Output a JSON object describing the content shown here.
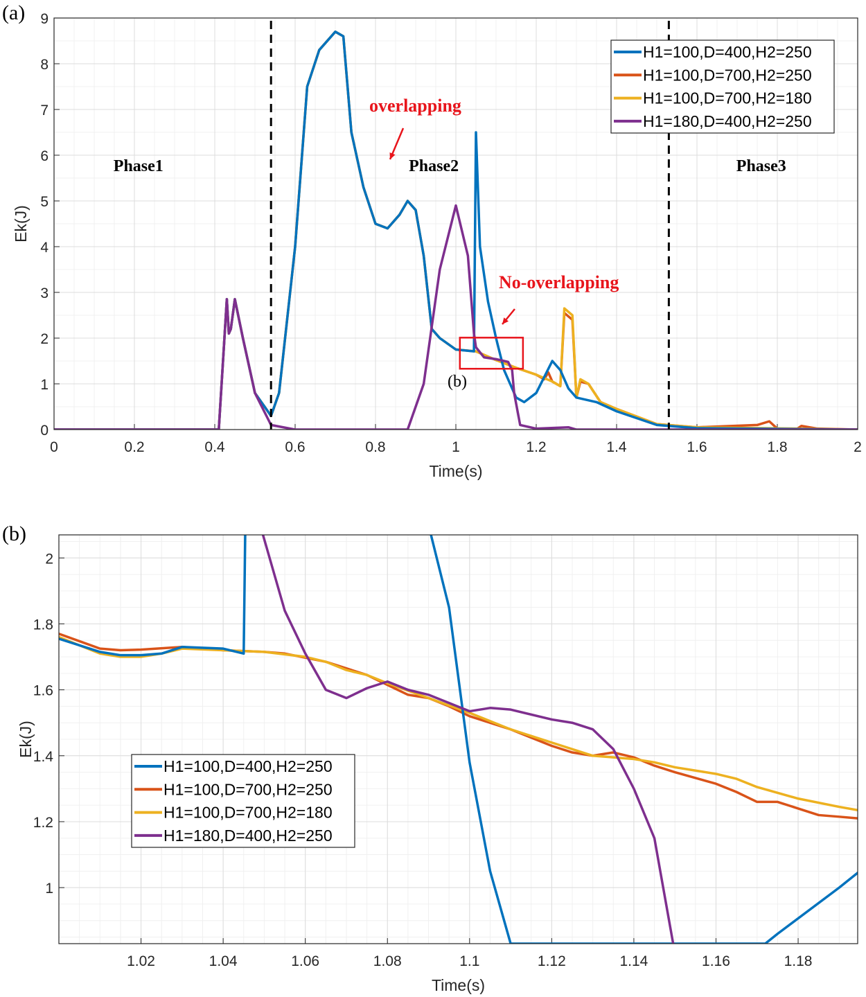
{
  "colors": {
    "s1": "#0072BD",
    "s2": "#D95319",
    "s3": "#EDB120",
    "s4": "#7E2F8E",
    "annot": "#e8141b"
  },
  "chart_data": [
    {
      "type": "line",
      "panel_label": "(a)",
      "xlabel": "Time(s)",
      "ylabel": "Ek(J)",
      "xlim": [
        0,
        2
      ],
      "ylim": [
        0,
        9
      ],
      "xticks": [
        0,
        0.2,
        0.4,
        0.6,
        0.8,
        1,
        1.2,
        1.4,
        1.6,
        1.8,
        2
      ],
      "xtick_labels": [
        "0",
        "0.2",
        "0.4",
        "0.6",
        "0.8",
        "1",
        "1.2",
        "1.4",
        "1.6",
        "1.8",
        "2"
      ],
      "yticks": [
        0,
        1,
        2,
        3,
        4,
        5,
        6,
        7,
        8,
        9
      ],
      "ytick_labels": [
        "0",
        "1",
        "2",
        "3",
        "4",
        "5",
        "6",
        "7",
        "8",
        "9"
      ],
      "grid": true,
      "legend": "top-right",
      "annotations": {
        "phase1": "Phase1",
        "phase2": "Phase2",
        "phase3": "Phase3",
        "overlapping": "overlapping",
        "no_overlapping": "No-overlapping",
        "zoom_label": "(b)",
        "phase_boundaries": [
          0.54,
          1.53
        ],
        "zoom_box": {
          "x": [
            1.01,
            1.167
          ],
          "y": [
            1.33,
            2.01
          ]
        }
      },
      "series": [
        {
          "name": "H1=100,D=400,H2=250",
          "color": "#0072BD",
          "x": [
            0,
            0.41,
            0.43,
            0.435,
            0.44,
            0.45,
            0.47,
            0.5,
            0.54,
            0.56,
            0.6,
            0.63,
            0.66,
            0.7,
            0.72,
            0.74,
            0.77,
            0.8,
            0.83,
            0.86,
            0.88,
            0.9,
            0.92,
            0.94,
            0.96,
            1.0,
            1.045,
            1.05,
            1.06,
            1.08,
            1.1,
            1.12,
            1.15,
            1.17,
            1.2,
            1.24,
            1.26,
            1.28,
            1.3,
            1.35,
            1.4,
            1.5,
            1.6,
            2
          ],
          "y": [
            0,
            0,
            2.85,
            2.1,
            2.2,
            2.85,
            2,
            0.8,
            0.3,
            0.8,
            4,
            7.5,
            8.3,
            8.7,
            8.6,
            6.5,
            5.3,
            4.5,
            4.4,
            4.7,
            5,
            4.8,
            3.8,
            2.2,
            2,
            1.75,
            1.71,
            6.5,
            4,
            2.8,
            2.0,
            1.3,
            0.7,
            0.6,
            0.8,
            1.5,
            1.3,
            0.9,
            0.7,
            0.6,
            0.4,
            0.1,
            0.03,
            0
          ]
        },
        {
          "name": "H1=100,D=700,H2=250",
          "color": "#D95319",
          "x": [
            0,
            0.41,
            0.43,
            0.435,
            0.44,
            0.45,
            0.47,
            0.5,
            0.54,
            0.56,
            0.6,
            0.63,
            0.66,
            0.7,
            0.72,
            0.74,
            0.77,
            0.8,
            0.83,
            0.86,
            0.88,
            0.9,
            0.92,
            0.94,
            0.96,
            1.0,
            1.05,
            1.1,
            1.15,
            1.2,
            1.22,
            1.23,
            1.24,
            1.26,
            1.27,
            1.29,
            1.3,
            1.31,
            1.33,
            1.36,
            1.4,
            1.5,
            1.6,
            1.75,
            1.78,
            1.8,
            1.85,
            1.86,
            1.9,
            2
          ],
          "y": [
            0,
            0,
            2.85,
            2.1,
            2.2,
            2.85,
            2,
            0.8,
            0.3,
            0.8,
            4,
            7.5,
            8.3,
            8.7,
            8.6,
            6.5,
            5.3,
            4.5,
            4.4,
            4.7,
            5,
            4.8,
            3.8,
            2.2,
            2,
            1.75,
            1.71,
            1.52,
            1.35,
            1.2,
            1.1,
            1.25,
            1.05,
            0.95,
            2.55,
            2.4,
            0.7,
            1.05,
            1.0,
            0.6,
            0.45,
            0.12,
            0.05,
            0.1,
            0.18,
            0.02,
            0.02,
            0.08,
            0.02,
            0
          ]
        },
        {
          "name": "H1=100,D=700,H2=180",
          "color": "#EDB120",
          "x": [
            0,
            0.41,
            0.43,
            0.435,
            0.44,
            0.45,
            0.47,
            0.5,
            0.54,
            0.56,
            0.6,
            0.63,
            0.66,
            0.7,
            0.72,
            0.74,
            0.77,
            0.8,
            0.83,
            0.86,
            0.88,
            0.9,
            0.92,
            0.94,
            0.96,
            1.0,
            1.05,
            1.1,
            1.15,
            1.2,
            1.24,
            1.26,
            1.27,
            1.29,
            1.3,
            1.31,
            1.33,
            1.36,
            1.4,
            1.5,
            1.6,
            2
          ],
          "y": [
            0,
            0,
            2.85,
            2.1,
            2.2,
            2.85,
            2,
            0.8,
            0.3,
            0.8,
            4,
            7.5,
            8.3,
            8.7,
            8.6,
            6.5,
            5.3,
            4.5,
            4.4,
            4.7,
            5,
            4.8,
            3.8,
            2.2,
            2,
            1.75,
            1.71,
            1.52,
            1.35,
            1.2,
            1.05,
            0.95,
            2.65,
            2.5,
            0.7,
            1.1,
            1.0,
            0.6,
            0.45,
            0.12,
            0.05,
            0
          ]
        },
        {
          "name": "H1=180,D=400,H2=250",
          "color": "#7E2F8E",
          "x": [
            0,
            0.41,
            0.43,
            0.435,
            0.44,
            0.45,
            0.47,
            0.5,
            0.54,
            0.6,
            0.88,
            0.92,
            0.96,
            1.0,
            1.03,
            1.045,
            1.05,
            1.07,
            1.1,
            1.13,
            1.14,
            1.145,
            1.16,
            1.2,
            1.28,
            1.3,
            2
          ],
          "y": [
            0,
            0,
            2.85,
            2.1,
            2.2,
            2.85,
            2,
            0.8,
            0.1,
            0,
            0,
            1,
            3.5,
            4.9,
            3.8,
            2.1,
            1.8,
            1.58,
            1.54,
            1.48,
            1.3,
            0.8,
            0.1,
            0.02,
            0.05,
            0,
            0
          ]
        }
      ]
    },
    {
      "type": "line",
      "panel_label": "(b)",
      "xlabel": "Time(s)",
      "ylabel": "Ek(J)",
      "xlim": [
        1.0,
        1.1945
      ],
      "ylim": [
        0.83,
        2.07
      ],
      "xticks": [
        1.02,
        1.04,
        1.06,
        1.08,
        1.1,
        1.12,
        1.14,
        1.16,
        1.18
      ],
      "xtick_labels": [
        "1.02",
        "1.04",
        "1.06",
        "1.08",
        "1.1",
        "1.12",
        "1.14",
        "1.16",
        "1.18"
      ],
      "yticks": [
        1,
        1.2,
        1.4,
        1.6,
        1.8,
        2
      ],
      "ytick_labels": [
        "1",
        "1.2",
        "1.4",
        "1.6",
        "1.8",
        "2"
      ],
      "grid": true,
      "legend": "center-left",
      "series": [
        {
          "name": "H1=100,D=400,H2=250",
          "color": "#0072BD",
          "x": [
            1.0,
            1.01,
            1.015,
            1.02,
            1.025,
            1.03,
            1.04,
            1.045,
            1.0455,
            1.09,
            1.095,
            1.1,
            1.105,
            1.11,
            1.172,
            1.175,
            1.19,
            1.195
          ],
          "y": [
            1.755,
            1.715,
            1.705,
            1.705,
            1.71,
            1.73,
            1.725,
            1.71,
            2.2,
            2.1,
            1.85,
            1.38,
            1.05,
            0.83,
            0.83,
            0.86,
            1.0,
            1.05
          ]
        },
        {
          "name": "H1=100,D=700,H2=250",
          "color": "#D95319",
          "x": [
            1.0,
            1.01,
            1.015,
            1.02,
            1.03,
            1.04,
            1.05,
            1.055,
            1.065,
            1.07,
            1.075,
            1.08,
            1.085,
            1.09,
            1.095,
            1.1,
            1.11,
            1.12,
            1.125,
            1.13,
            1.135,
            1.14,
            1.145,
            1.15,
            1.16,
            1.165,
            1.17,
            1.175,
            1.18,
            1.185,
            1.19,
            1.1945
          ],
          "y": [
            1.77,
            1.725,
            1.72,
            1.722,
            1.73,
            1.72,
            1.715,
            1.71,
            1.685,
            1.665,
            1.645,
            1.615,
            1.585,
            1.575,
            1.55,
            1.52,
            1.48,
            1.43,
            1.41,
            1.4,
            1.41,
            1.395,
            1.37,
            1.35,
            1.315,
            1.29,
            1.26,
            1.26,
            1.24,
            1.22,
            1.215,
            1.21
          ]
        },
        {
          "name": "H1=100,D=700,H2=180",
          "color": "#EDB120",
          "x": [
            1.0,
            1.01,
            1.015,
            1.02,
            1.025,
            1.03,
            1.04,
            1.05,
            1.06,
            1.065,
            1.07,
            1.075,
            1.08,
            1.09,
            1.1,
            1.11,
            1.12,
            1.13,
            1.14,
            1.145,
            1.15,
            1.16,
            1.165,
            1.17,
            1.18,
            1.19,
            1.1945
          ],
          "y": [
            1.76,
            1.71,
            1.7,
            1.7,
            1.71,
            1.725,
            1.72,
            1.715,
            1.7,
            1.685,
            1.66,
            1.645,
            1.62,
            1.575,
            1.53,
            1.48,
            1.44,
            1.4,
            1.39,
            1.38,
            1.365,
            1.345,
            1.33,
            1.305,
            1.27,
            1.245,
            1.235
          ]
        },
        {
          "name": "H1=180,D=400,H2=250",
          "color": "#7E2F8E",
          "x": [
            1.049,
            1.055,
            1.06,
            1.065,
            1.07,
            1.075,
            1.08,
            1.085,
            1.09,
            1.095,
            1.1,
            1.105,
            1.11,
            1.12,
            1.125,
            1.13,
            1.135,
            1.14,
            1.145,
            1.15
          ],
          "y": [
            2.1,
            1.84,
            1.71,
            1.6,
            1.575,
            1.605,
            1.625,
            1.6,
            1.585,
            1.56,
            1.535,
            1.545,
            1.54,
            1.51,
            1.5,
            1.48,
            1.42,
            1.3,
            1.15,
            0.8
          ]
        }
      ]
    }
  ]
}
